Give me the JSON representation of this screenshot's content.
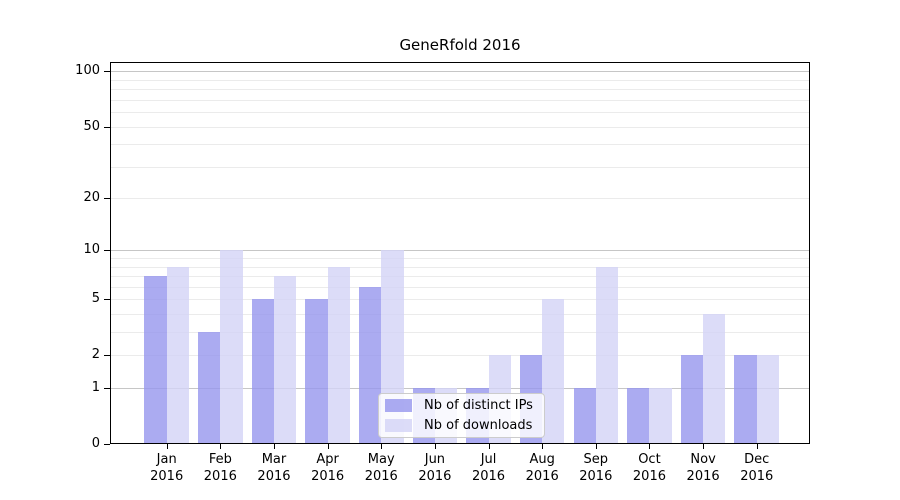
{
  "window": {
    "background": "#ffffff"
  },
  "chart_data": {
    "type": "bar",
    "title": "GeneRfold 2016",
    "categories": [
      "Jan",
      "Feb",
      "Mar",
      "Apr",
      "May",
      "Jun",
      "Jul",
      "Aug",
      "Sep",
      "Oct",
      "Nov",
      "Dec"
    ],
    "year_label": "2016",
    "series": [
      {
        "name": "Nb of distinct IPs",
        "color": "rgba(150,150,238,0.8)",
        "values": [
          7,
          3,
          5,
          5,
          6,
          1,
          1,
          2,
          1,
          1,
          2,
          2
        ]
      },
      {
        "name": "Nb of downloads",
        "color": "rgba(211,211,246,0.8)",
        "values": [
          8,
          10,
          7,
          8,
          10,
          1,
          2,
          5,
          8,
          1,
          4,
          2
        ]
      }
    ],
    "yscale": "log10(1+v)",
    "ylim": [
      0,
      112
    ],
    "ytick_values": [
      0,
      1,
      2,
      5,
      10,
      20,
      50,
      100
    ],
    "ytick_labels": [
      "0",
      "1",
      "2",
      "5",
      "10",
      "20",
      "50",
      "100"
    ],
    "gridlines": {
      "major_values": [
        1,
        10,
        100
      ],
      "minor_values": [
        2,
        3,
        4,
        5,
        6,
        7,
        8,
        9,
        20,
        30,
        40,
        50,
        60,
        70,
        80,
        90
      ],
      "major_color": "#c6c6c6",
      "minor_color": "#ebebeb"
    },
    "legend": {
      "entries": [
        "Nb of distinct IPs",
        "Nb of downloads"
      ],
      "position": "lower center"
    },
    "grid": true,
    "legend_position": "lower center"
  }
}
